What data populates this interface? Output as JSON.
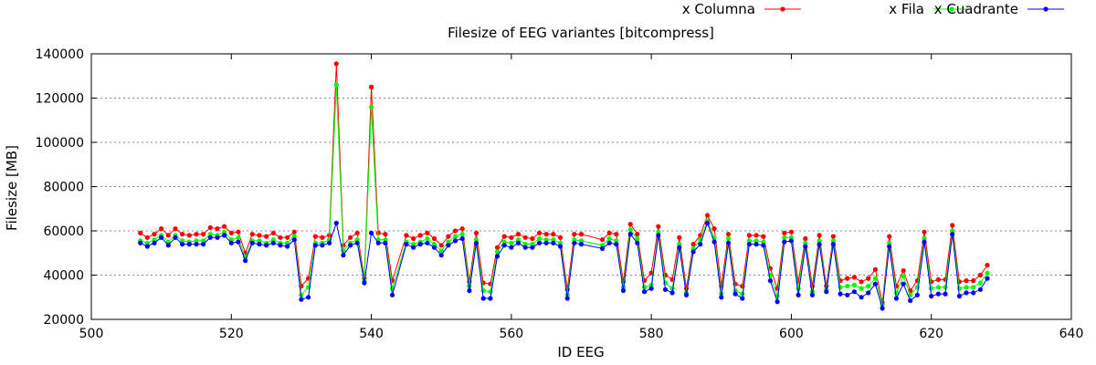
{
  "chart_data": {
    "type": "line",
    "title": "Filesize of EEG variantes [bitcompress]",
    "xlabel": "ID EEG",
    "ylabel": "Filesize [MB]",
    "xlim": [
      500,
      640
    ],
    "ylim": [
      20000,
      140000
    ],
    "x_ticks": [
      500,
      520,
      540,
      560,
      580,
      600,
      620,
      640
    ],
    "y_ticks": [
      20000,
      40000,
      60000,
      80000,
      100000,
      120000,
      140000
    ],
    "grid": "horizontal, dotted",
    "legend_position": "top-right",
    "x": [
      507,
      508,
      509,
      510,
      511,
      512,
      513,
      514,
      515,
      516,
      517,
      518,
      519,
      520,
      521,
      522,
      523,
      524,
      525,
      526,
      527,
      528,
      529,
      530,
      531,
      532,
      533,
      534,
      535,
      536,
      537,
      538,
      539,
      540,
      541,
      542,
      543,
      545,
      546,
      547,
      548,
      549,
      550,
      551,
      552,
      553,
      554,
      555,
      556,
      557,
      558,
      559,
      560,
      561,
      562,
      563,
      564,
      565,
      566,
      567,
      568,
      569,
      570,
      573,
      574,
      575,
      576,
      577,
      578,
      579,
      580,
      581,
      582,
      583,
      584,
      585,
      586,
      587,
      588,
      589,
      590,
      591,
      592,
      593,
      594,
      595,
      596,
      597,
      598,
      599,
      600,
      601,
      602,
      603,
      604,
      605,
      606,
      607,
      608,
      609,
      610,
      611,
      612,
      613,
      614,
      615,
      616,
      617,
      618,
      619,
      620,
      621,
      622,
      623,
      624,
      625,
      626,
      627,
      628
    ],
    "series": [
      {
        "name": "x Columna",
        "color": "#ff0000",
        "values": [
          59000,
          57000,
          58500,
          61000,
          58000,
          61000,
          58500,
          58000,
          58500,
          58500,
          61500,
          61000,
          62000,
          59000,
          59500,
          50000,
          58500,
          58000,
          57500,
          59000,
          57000,
          57000,
          59500,
          35000,
          38500,
          57500,
          57000,
          58000,
          135500,
          53500,
          57000,
          59000,
          38500,
          125000,
          59000,
          58500,
          37500,
          58000,
          56500,
          58000,
          59000,
          56500,
          53500,
          57500,
          60000,
          61000,
          37000,
          59000,
          36500,
          36000,
          52500,
          57500,
          57000,
          58500,
          57000,
          56500,
          59000,
          58500,
          58500,
          57000,
          33500,
          58500,
          58500,
          56000,
          59000,
          58500,
          37000,
          63000,
          58500,
          37500,
          41000,
          62000,
          40000,
          38000,
          57000,
          34000,
          54000,
          58000,
          67000,
          61000,
          35000,
          58500,
          36000,
          35000,
          58000,
          58000,
          57500,
          43000,
          34000,
          59000,
          59500,
          37000,
          56500,
          35000,
          58000,
          35000,
          57500,
          37500,
          38500,
          39000,
          37000,
          38500,
          42500,
          27500,
          57500,
          35000,
          42000,
          33000,
          37500,
          59500,
          37000,
          38000,
          38000,
          62500,
          37000,
          37500,
          37500,
          40000,
          44500
        ]
      },
      {
        "name": "x Fila",
        "color": "#00ff00",
        "values": [
          55500,
          54500,
          56000,
          58000,
          55000,
          58000,
          55500,
          55000,
          55500,
          55500,
          58500,
          58000,
          59500,
          56000,
          57000,
          48000,
          55500,
          55500,
          54500,
          56000,
          54500,
          54500,
          57500,
          31000,
          34500,
          54500,
          54500,
          56000,
          126000,
          51000,
          54500,
          56000,
          37500,
          116000,
          56000,
          56000,
          34000,
          55000,
          54000,
          55000,
          56500,
          54000,
          51000,
          55000,
          57500,
          58500,
          35000,
          56000,
          33000,
          32500,
          50500,
          55000,
          54500,
          56000,
          54000,
          54000,
          56500,
          56000,
          56000,
          54500,
          31000,
          56000,
          55500,
          53500,
          56500,
          55500,
          34500,
          60500,
          56500,
          34500,
          35500,
          59500,
          36500,
          34000,
          54000,
          32000,
          52000,
          56000,
          64500,
          57000,
          31500,
          56500,
          33000,
          31500,
          55500,
          55500,
          55000,
          40000,
          30500,
          57000,
          57000,
          34000,
          54500,
          32500,
          55500,
          33500,
          55500,
          34500,
          35000,
          35500,
          34000,
          35000,
          38500,
          26500,
          54500,
          32000,
          39500,
          31000,
          34500,
          56500,
          34000,
          34500,
          34500,
          60000,
          34000,
          34500,
          34500,
          36500,
          41000
        ]
      },
      {
        "name": "x Cuadrante",
        "color": "#0000ff",
        "values": [
          54500,
          53000,
          54500,
          57000,
          53500,
          57000,
          54000,
          54000,
          54000,
          54000,
          57000,
          57000,
          58000,
          54500,
          55000,
          46500,
          54500,
          54000,
          53500,
          54500,
          53500,
          53000,
          56000,
          29000,
          30000,
          53500,
          53500,
          54500,
          63500,
          49000,
          53500,
          54500,
          36500,
          59000,
          54500,
          54500,
          31000,
          54000,
          52500,
          54000,
          54500,
          52500,
          49000,
          53500,
          55500,
          56500,
          33000,
          54500,
          29500,
          29500,
          48500,
          53500,
          52500,
          54500,
          52500,
          52500,
          54500,
          54500,
          54500,
          53000,
          29500,
          54500,
          54000,
          52000,
          54500,
          54000,
          33000,
          58500,
          54500,
          32500,
          34000,
          58000,
          33500,
          32000,
          52500,
          31000,
          50500,
          54000,
          63500,
          55000,
          30000,
          54500,
          31500,
          29500,
          54000,
          54000,
          53500,
          37500,
          28000,
          55000,
          55500,
          31000,
          53000,
          31000,
          54000,
          32500,
          54000,
          31500,
          31000,
          32500,
          30000,
          32000,
          36000,
          25000,
          53000,
          29500,
          36000,
          28500,
          31000,
          55000,
          30500,
          31500,
          31500,
          58500,
          30500,
          32000,
          32000,
          33500,
          38500
        ]
      }
    ]
  }
}
